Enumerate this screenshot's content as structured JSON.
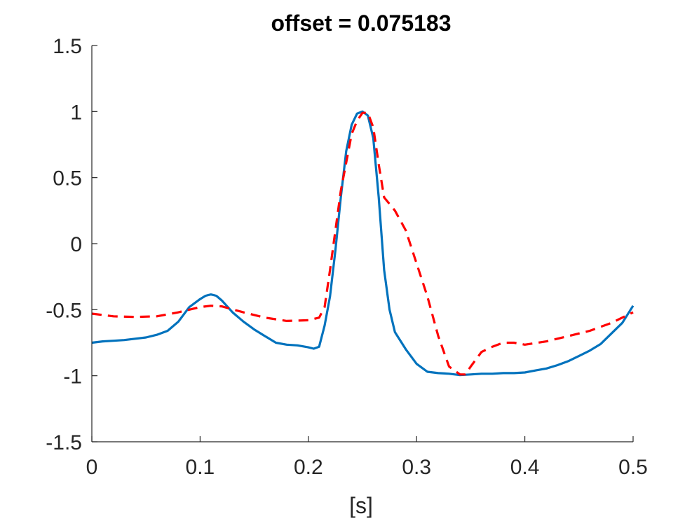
{
  "chart_data": {
    "type": "line",
    "title": "offset = 0.075183",
    "xlabel": "[s]",
    "ylabel": "",
    "xlim": [
      0,
      0.5
    ],
    "ylim": [
      -1.5,
      1.5
    ],
    "xticks": [
      0,
      0.1,
      0.2,
      0.3,
      0.4,
      0.5
    ],
    "xtick_labels": [
      "0",
      "0.1",
      "0.2",
      "0.3",
      "0.4",
      "0.5"
    ],
    "yticks": [
      -1.5,
      -1,
      -0.5,
      0,
      0.5,
      1,
      1.5
    ],
    "ytick_labels": [
      "-1.5",
      "-1",
      "-0.5",
      "0",
      "0.5",
      "1",
      "1.5"
    ],
    "grid": false,
    "series": [
      {
        "color": "#0072BD",
        "style": "solid",
        "x": [
          0,
          0.01,
          0.02,
          0.03,
          0.04,
          0.05,
          0.06,
          0.07,
          0.08,
          0.09,
          0.1,
          0.105,
          0.11,
          0.115,
          0.12,
          0.13,
          0.14,
          0.15,
          0.16,
          0.17,
          0.18,
          0.19,
          0.2,
          0.205,
          0.21,
          0.215,
          0.22,
          0.225,
          0.23,
          0.235,
          0.24,
          0.245,
          0.25,
          0.255,
          0.26,
          0.265,
          0.27,
          0.275,
          0.28,
          0.29,
          0.3,
          0.31,
          0.32,
          0.33,
          0.34,
          0.35,
          0.36,
          0.37,
          0.38,
          0.39,
          0.4,
          0.41,
          0.42,
          0.43,
          0.44,
          0.45,
          0.46,
          0.47,
          0.48,
          0.49,
          0.5
        ],
        "y": [
          -0.75,
          -0.74,
          -0.735,
          -0.73,
          -0.72,
          -0.71,
          -0.69,
          -0.66,
          -0.59,
          -0.48,
          -0.42,
          -0.395,
          -0.385,
          -0.395,
          -0.43,
          -0.52,
          -0.59,
          -0.65,
          -0.7,
          -0.75,
          -0.765,
          -0.77,
          -0.785,
          -0.795,
          -0.78,
          -0.62,
          -0.4,
          -0.05,
          0.35,
          0.7,
          0.9,
          0.985,
          1.0,
          0.97,
          0.8,
          0.35,
          -0.2,
          -0.5,
          -0.67,
          -0.8,
          -0.91,
          -0.97,
          -0.98,
          -0.985,
          -0.995,
          -0.99,
          -0.985,
          -0.985,
          -0.98,
          -0.98,
          -0.975,
          -0.96,
          -0.945,
          -0.92,
          -0.89,
          -0.85,
          -0.81,
          -0.76,
          -0.68,
          -0.6,
          -0.47
        ]
      },
      {
        "color": "#FF0000",
        "style": "dashed",
        "x": [
          0,
          0.02,
          0.04,
          0.06,
          0.08,
          0.1,
          0.11,
          0.12,
          0.14,
          0.16,
          0.18,
          0.2,
          0.21,
          0.215,
          0.22,
          0.23,
          0.24,
          0.245,
          0.25,
          0.255,
          0.26,
          0.265,
          0.27,
          0.28,
          0.29,
          0.3,
          0.31,
          0.32,
          0.33,
          0.34,
          0.345,
          0.35,
          0.36,
          0.37,
          0.38,
          0.39,
          0.4,
          0.42,
          0.44,
          0.46,
          0.48,
          0.5
        ],
        "y": [
          -0.53,
          -0.55,
          -0.555,
          -0.55,
          -0.52,
          -0.48,
          -0.47,
          -0.475,
          -0.52,
          -0.56,
          -0.585,
          -0.58,
          -0.56,
          -0.48,
          -0.2,
          0.4,
          0.83,
          0.93,
          0.99,
          0.99,
          0.88,
          0.6,
          0.35,
          0.25,
          0.1,
          -0.15,
          -0.4,
          -0.7,
          -0.93,
          -0.99,
          -0.99,
          -0.93,
          -0.82,
          -0.78,
          -0.75,
          -0.75,
          -0.765,
          -0.74,
          -0.7,
          -0.66,
          -0.6,
          -0.52
        ]
      }
    ]
  }
}
